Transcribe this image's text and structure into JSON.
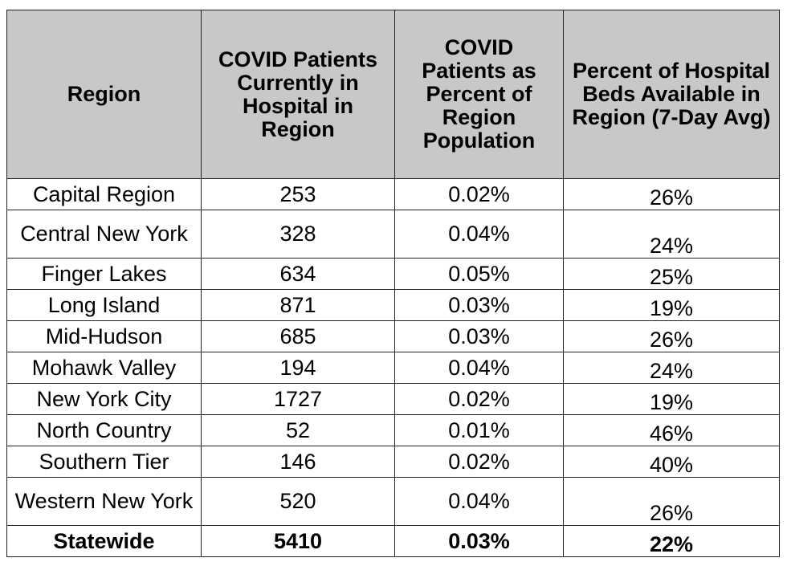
{
  "table": {
    "headers": [
      "Region",
      "COVID Patients Currently in Hospital in Region",
      "COVID Patients as Percent of Region Population",
      "Percent of Hospital Beds Available in Region (7-Day Avg)"
    ],
    "rows": [
      {
        "region": "Capital Region",
        "patients": "253",
        "pct_population": "0.02%",
        "pct_beds": "26%"
      },
      {
        "region": "Central New York",
        "patients": "328",
        "pct_population": "0.04%",
        "pct_beds": "24%"
      },
      {
        "region": "Finger Lakes",
        "patients": "634",
        "pct_population": "0.05%",
        "pct_beds": "25%"
      },
      {
        "region": "Long Island",
        "patients": "871",
        "pct_population": "0.03%",
        "pct_beds": "19%"
      },
      {
        "region": "Mid-Hudson",
        "patients": "685",
        "pct_population": "0.03%",
        "pct_beds": "26%"
      },
      {
        "region": "Mohawk Valley",
        "patients": "194",
        "pct_population": "0.04%",
        "pct_beds": "24%"
      },
      {
        "region": "New York City",
        "patients": "1727",
        "pct_population": "0.02%",
        "pct_beds": "19%"
      },
      {
        "region": "North Country",
        "patients": "52",
        "pct_population": "0.01%",
        "pct_beds": "46%"
      },
      {
        "region": "Southern Tier",
        "patients": "146",
        "pct_population": "0.02%",
        "pct_beds": "40%"
      },
      {
        "region": "Western New York",
        "patients": "520",
        "pct_population": "0.04%",
        "pct_beds": "26%"
      }
    ],
    "total": {
      "region": "Statewide",
      "patients": "5410",
      "pct_population": "0.03%",
      "pct_beds": "22%"
    }
  }
}
